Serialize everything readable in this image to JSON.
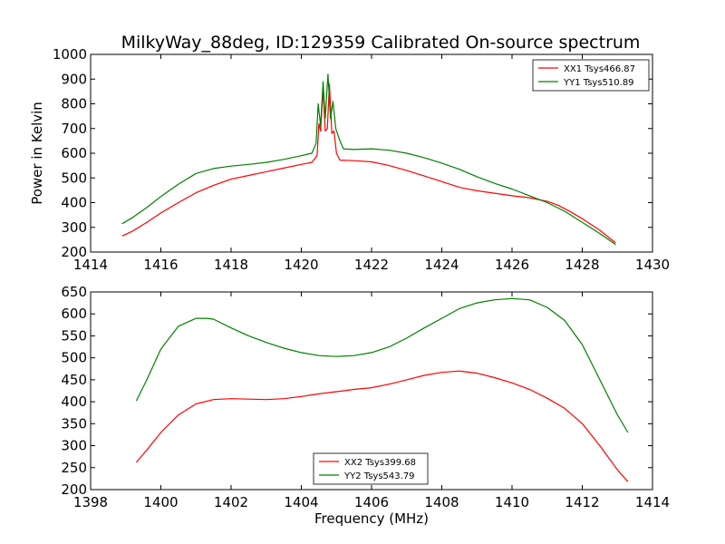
{
  "chart_data": [
    {
      "type": "line",
      "title": "MilkyWay_88deg, ID:129359 Calibrated On-source spectrum",
      "xlabel": "",
      "ylabel": "Power in Kelvin",
      "xlim": [
        1414,
        1430
      ],
      "ylim": [
        200,
        1000
      ],
      "xticks": [
        1414,
        1416,
        1418,
        1420,
        1422,
        1424,
        1426,
        1428,
        1430
      ],
      "yticks": [
        200,
        300,
        400,
        500,
        600,
        700,
        800,
        900,
        1000
      ],
      "grid": false,
      "legend_position": "top-right",
      "series": [
        {
          "name": "XX1 Tsys466.87",
          "color": "#ff0000",
          "points": [
            [
              1414.9,
              265
            ],
            [
              1415.2,
              285
            ],
            [
              1415.6,
              320
            ],
            [
              1416.0,
              358
            ],
            [
              1416.5,
              400
            ],
            [
              1417.0,
              440
            ],
            [
              1417.5,
              470
            ],
            [
              1418.0,
              495
            ],
            [
              1418.5,
              510
            ],
            [
              1419.0,
              525
            ],
            [
              1419.5,
              540
            ],
            [
              1420.0,
              555
            ],
            [
              1420.3,
              563
            ],
            [
              1420.45,
              590
            ],
            [
              1420.5,
              720
            ],
            [
              1420.55,
              690
            ],
            [
              1420.62,
              860
            ],
            [
              1420.68,
              690
            ],
            [
              1420.74,
              700
            ],
            [
              1420.8,
              880
            ],
            [
              1420.87,
              680
            ],
            [
              1420.93,
              690
            ],
            [
              1421.0,
              600
            ],
            [
              1421.1,
              572
            ],
            [
              1421.5,
              570
            ],
            [
              1422.0,
              565
            ],
            [
              1422.5,
              550
            ],
            [
              1423.0,
              530
            ],
            [
              1423.5,
              508
            ],
            [
              1424.0,
              485
            ],
            [
              1424.5,
              462
            ],
            [
              1425.0,
              448
            ],
            [
              1425.5,
              438
            ],
            [
              1426.0,
              428
            ],
            [
              1426.5,
              420
            ],
            [
              1427.0,
              405
            ],
            [
              1427.3,
              390
            ],
            [
              1427.6,
              368
            ],
            [
              1428.0,
              335
            ],
            [
              1428.5,
              288
            ],
            [
              1428.95,
              237
            ]
          ]
        },
        {
          "name": "YY1 Tsys510.89",
          "color": "#008000",
          "points": [
            [
              1414.9,
              315
            ],
            [
              1415.2,
              340
            ],
            [
              1415.6,
              380
            ],
            [
              1416.0,
              425
            ],
            [
              1416.5,
              475
            ],
            [
              1417.0,
              518
            ],
            [
              1417.5,
              538
            ],
            [
              1418.0,
              548
            ],
            [
              1418.5,
              555
            ],
            [
              1419.0,
              563
            ],
            [
              1419.5,
              575
            ],
            [
              1420.0,
              590
            ],
            [
              1420.3,
              600
            ],
            [
              1420.42,
              640
            ],
            [
              1420.48,
              800
            ],
            [
              1420.55,
              710
            ],
            [
              1420.62,
              890
            ],
            [
              1420.68,
              740
            ],
            [
              1420.76,
              920
            ],
            [
              1420.83,
              740
            ],
            [
              1420.9,
              810
            ],
            [
              1420.98,
              700
            ],
            [
              1421.1,
              650
            ],
            [
              1421.2,
              618
            ],
            [
              1421.5,
              615
            ],
            [
              1422.0,
              618
            ],
            [
              1422.5,
              612
            ],
            [
              1423.0,
              600
            ],
            [
              1423.5,
              582
            ],
            [
              1424.0,
              560
            ],
            [
              1424.5,
              535
            ],
            [
              1425.0,
              505
            ],
            [
              1425.5,
              478
            ],
            [
              1426.0,
              455
            ],
            [
              1426.5,
              428
            ],
            [
              1427.0,
              400
            ],
            [
              1427.5,
              365
            ],
            [
              1428.0,
              320
            ],
            [
              1428.5,
              275
            ],
            [
              1428.95,
              230
            ]
          ]
        }
      ]
    },
    {
      "type": "line",
      "title": "",
      "xlabel": "Frequency (MHz)",
      "ylabel": "",
      "xlim": [
        1398,
        1414
      ],
      "ylim": [
        200,
        650
      ],
      "xticks": [
        1398,
        1400,
        1402,
        1404,
        1406,
        1408,
        1410,
        1412,
        1414
      ],
      "yticks": [
        200,
        250,
        300,
        350,
        400,
        450,
        500,
        550,
        600,
        650
      ],
      "grid": false,
      "legend_position": "lower-center",
      "series": [
        {
          "name": "XX2 Tsys399.68",
          "color": "#ff0000",
          "points": [
            [
              1399.3,
              262
            ],
            [
              1399.6,
              290
            ],
            [
              1400.0,
              330
            ],
            [
              1400.5,
              370
            ],
            [
              1401.0,
              395
            ],
            [
              1401.5,
              405
            ],
            [
              1402.0,
              407
            ],
            [
              1402.5,
              406
            ],
            [
              1403.0,
              405
            ],
            [
              1403.5,
              407
            ],
            [
              1404.0,
              412
            ],
            [
              1404.5,
              418
            ],
            [
              1405.0,
              423
            ],
            [
              1405.5,
              428
            ],
            [
              1406.0,
              432
            ],
            [
              1406.5,
              440
            ],
            [
              1407.0,
              450
            ],
            [
              1407.5,
              460
            ],
            [
              1408.0,
              467
            ],
            [
              1408.5,
              470
            ],
            [
              1409.0,
              465
            ],
            [
              1409.5,
              455
            ],
            [
              1410.0,
              443
            ],
            [
              1410.5,
              428
            ],
            [
              1411.0,
              408
            ],
            [
              1411.5,
              385
            ],
            [
              1412.0,
              350
            ],
            [
              1412.5,
              300
            ],
            [
              1413.0,
              245
            ],
            [
              1413.3,
              218
            ]
          ]
        },
        {
          "name": "YY2 Tsys543.79",
          "color": "#008000",
          "points": [
            [
              1399.3,
              402
            ],
            [
              1399.6,
              450
            ],
            [
              1400.0,
              520
            ],
            [
              1400.5,
              572
            ],
            [
              1401.0,
              590
            ],
            [
              1401.3,
              590
            ],
            [
              1401.5,
              588
            ],
            [
              1402.0,
              568
            ],
            [
              1402.5,
              550
            ],
            [
              1403.0,
              535
            ],
            [
              1403.5,
              522
            ],
            [
              1404.0,
              512
            ],
            [
              1404.5,
              505
            ],
            [
              1405.0,
              503
            ],
            [
              1405.5,
              505
            ],
            [
              1406.0,
              512
            ],
            [
              1406.5,
              525
            ],
            [
              1407.0,
              545
            ],
            [
              1407.5,
              568
            ],
            [
              1408.0,
              590
            ],
            [
              1408.5,
              612
            ],
            [
              1409.0,
              625
            ],
            [
              1409.5,
              632
            ],
            [
              1410.0,
              635
            ],
            [
              1410.5,
              632
            ],
            [
              1411.0,
              615
            ],
            [
              1411.5,
              585
            ],
            [
              1412.0,
              530
            ],
            [
              1412.5,
              450
            ],
            [
              1413.0,
              370
            ],
            [
              1413.3,
              330
            ]
          ]
        }
      ]
    }
  ]
}
